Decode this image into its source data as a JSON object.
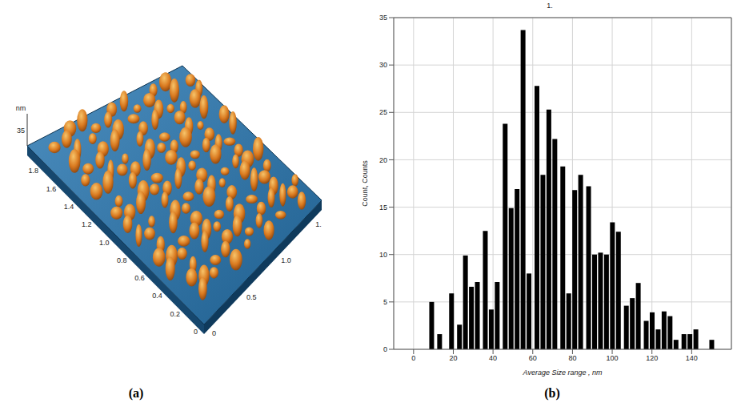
{
  "chart_data": [
    {
      "type": "surface",
      "panel": "(a)",
      "zlabel": "nm",
      "zticks": [
        35
      ],
      "yticks": [
        0,
        0.2,
        0.4,
        0.6,
        0.8,
        {
          "value": 1,
          "label": "1.0"
        },
        1.2,
        1.4,
        1.6,
        1.8
      ],
      "xticks": [
        0,
        0.5,
        {
          "value": 1,
          "label": "1.0"
        },
        {
          "value": 1.5,
          "label": "1."
        }
      ]
    },
    {
      "type": "bar",
      "panel": "(b)",
      "title": "1.",
      "xlabel": "Average Size range , nm",
      "ylabel": "Count, Counts",
      "x": [
        9,
        13,
        19,
        23,
        26,
        29,
        32,
        36,
        39,
        42,
        46,
        49,
        52,
        55,
        58,
        62,
        65,
        68,
        71,
        75,
        78,
        81,
        84,
        88,
        91,
        94,
        97,
        100,
        103,
        107,
        110,
        113,
        117,
        120,
        123,
        126,
        129,
        132,
        136,
        139,
        142,
        150
      ],
      "values": [
        5.0,
        1.6,
        5.9,
        2.6,
        9.9,
        6.6,
        7.1,
        12.5,
        4.2,
        7.1,
        23.8,
        14.9,
        16.9,
        33.7,
        8.0,
        27.8,
        18.4,
        25.3,
        22.2,
        19.3,
        5.9,
        16.8,
        18.4,
        17.2,
        10.0,
        10.2,
        10.0,
        13.4,
        12.4,
        4.6,
        5.4,
        7.0,
        3.0,
        3.9,
        2.1,
        4.0,
        3.5,
        1.0,
        1.6,
        1.6,
        2.1,
        1.0
      ],
      "xlim": [
        -10,
        160
      ],
      "xticks": [
        0,
        20,
        40,
        60,
        80,
        100,
        120,
        140
      ],
      "ylim": [
        0,
        35
      ],
      "yticks": [
        0,
        5,
        10,
        15,
        20,
        25,
        30,
        35
      ],
      "grid": true,
      "color": "#000000"
    }
  ]
}
